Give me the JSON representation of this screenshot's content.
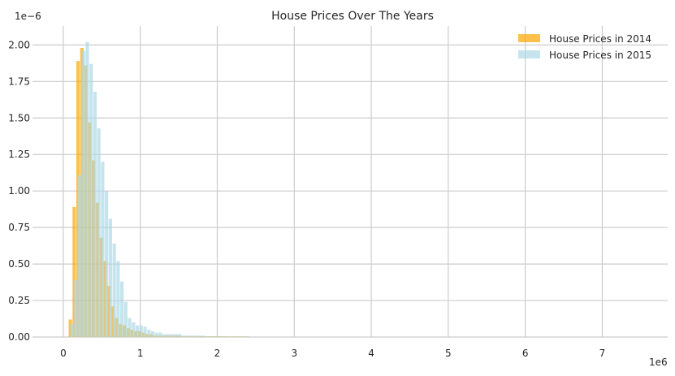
{
  "chart_data": {
    "type": "bar",
    "title": "House Prices Over The Years",
    "xlabel": "",
    "ylabel": "",
    "x_offset_label": "1e6",
    "y_offset_label": "1e−6",
    "xlim": [
      -0.4,
      7.85
    ],
    "ylim": [
      0,
      2.13
    ],
    "x_ticks": [
      0,
      1,
      2,
      3,
      4,
      5,
      6,
      7,
      8
    ],
    "y_ticks": [
      0.0,
      0.25,
      0.5,
      0.75,
      1.0,
      1.25,
      1.5,
      1.75,
      2.0
    ],
    "y_tick_labels": [
      "0.00",
      "0.25",
      "0.50",
      "0.75",
      "1.00",
      "1.25",
      "1.50",
      "1.75",
      "2.00"
    ],
    "grid": true,
    "legend_position": "top-right",
    "bin_width": 0.05,
    "colors": {
      "2014": "#FFA500",
      "2015": "#ADD8E6"
    },
    "series": [
      {
        "name": "House Prices in 2014",
        "bin_start": 0.07,
        "values": [
          0.12,
          0.89,
          1.89,
          1.98,
          1.86,
          1.47,
          1.21,
          0.92,
          0.68,
          0.52,
          0.35,
          0.21,
          0.13,
          0.09,
          0.08,
          0.06,
          0.05,
          0.04,
          0.04,
          0.03,
          0.02,
          0.02,
          0.01,
          0.01,
          0.01,
          0.01,
          0.01,
          0.01,
          0.01,
          0.005,
          0.005,
          0.005,
          0.005,
          0.005,
          0.005,
          0.005,
          0.005,
          0.005,
          0.005,
          0.005,
          0.005,
          0.004,
          0.004,
          0.004,
          0.004,
          0.004,
          0.004
        ]
      },
      {
        "name": "House Prices in 2015",
        "bin_start": 0.09,
        "values": [
          0.09,
          0.39,
          1.11,
          1.96,
          2.02,
          1.87,
          1.68,
          1.43,
          1.2,
          1.0,
          0.81,
          0.64,
          0.52,
          0.38,
          0.24,
          0.13,
          0.1,
          0.08,
          0.08,
          0.07,
          0.05,
          0.04,
          0.03,
          0.03,
          0.02,
          0.02,
          0.02,
          0.02,
          0.02,
          0.01,
          0.01,
          0.01,
          0.01,
          0.01,
          0.01,
          0.005,
          0.005,
          0.005,
          0.005,
          0.005,
          0.004,
          0.004,
          0.004,
          0.004,
          0.004,
          0.004,
          0.003
        ]
      }
    ]
  }
}
